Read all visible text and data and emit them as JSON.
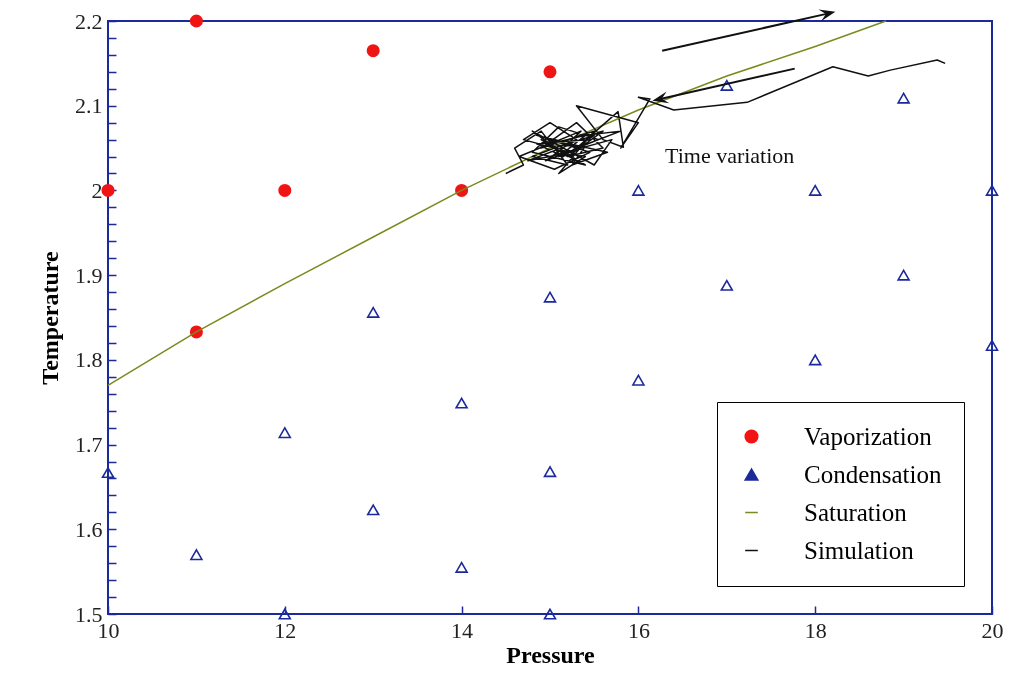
{
  "chart_data": {
    "type": "scatter",
    "xlabel": "Pressure",
    "ylabel": "Temperature",
    "xlim": [
      10,
      20
    ],
    "ylim": [
      1.5,
      2.2
    ],
    "xticks": [
      10,
      12,
      14,
      16,
      18,
      20
    ],
    "yticks": [
      1.5,
      {
        "value": 1.52,
        "label": null
      },
      {
        "value": 1.54,
        "label": null
      },
      {
        "value": 1.56,
        "label": null
      },
      {
        "value": 1.58,
        "label": null
      },
      1.6,
      {
        "value": 1.62,
        "label": null
      },
      {
        "value": 1.64,
        "label": null
      },
      {
        "value": 1.66,
        "label": null
      },
      {
        "value": 1.68,
        "label": null
      },
      1.7,
      {
        "value": 1.72,
        "label": null
      },
      {
        "value": 1.74,
        "label": null
      },
      {
        "value": 1.76,
        "label": null
      },
      {
        "value": 1.78,
        "label": null
      },
      1.8,
      {
        "value": 1.82,
        "label": null
      },
      {
        "value": 1.84,
        "label": null
      },
      {
        "value": 1.86,
        "label": null
      },
      {
        "value": 1.88,
        "label": null
      },
      1.9,
      {
        "value": 1.92,
        "label": null
      },
      {
        "value": 1.94,
        "label": null
      },
      {
        "value": 1.96,
        "label": null
      },
      {
        "value": 1.98,
        "label": null
      },
      2,
      {
        "value": 2.02,
        "label": null
      },
      {
        "value": 2.04,
        "label": null
      },
      {
        "value": 2.06,
        "label": null
      },
      {
        "value": 2.08,
        "label": null
      },
      2.1,
      {
        "value": 2.12,
        "label": null
      },
      {
        "value": 2.14,
        "label": null
      },
      {
        "value": 2.16,
        "label": null
      },
      {
        "value": 2.18,
        "label": null
      },
      2.2
    ],
    "legend": "bottom right",
    "annotations": [
      "Time variation"
    ],
    "series": [
      {
        "name": "Vaporization",
        "type": "scatter",
        "marker": "circle",
        "color": "#f01515",
        "x": [
          10,
          11,
          11,
          12,
          13,
          14,
          15
        ],
        "values": [
          2.0,
          2.2,
          1.833,
          2.0,
          2.165,
          2.0,
          2.14
        ]
      },
      {
        "name": "Condensation",
        "type": "scatter",
        "marker": "triangle",
        "color": "#1a2a9c",
        "x": [
          10,
          11,
          12,
          12,
          13,
          13,
          14,
          14,
          15,
          15,
          15,
          16,
          16,
          17,
          17,
          18,
          18,
          19,
          19,
          20,
          20
        ],
        "values": [
          1.667,
          1.57,
          1.714,
          1.5,
          1.856,
          1.623,
          1.749,
          1.555,
          1.874,
          1.668,
          1.5,
          2.0,
          1.776,
          2.124,
          1.888,
          2.0,
          1.8,
          2.109,
          1.9,
          2.0,
          1.817
        ]
      },
      {
        "name": "Saturation",
        "type": "line",
        "color": "#7a8a1e",
        "x": [
          10,
          11,
          12,
          13,
          14,
          15,
          16,
          17,
          18,
          18.8
        ],
        "values": [
          1.77,
          1.833,
          1.89,
          1.945,
          2.0,
          2.05,
          2.095,
          2.135,
          2.17,
          2.2
        ]
      },
      {
        "name": "Simulation",
        "type": "line",
        "color": "#111111",
        "x": [
          14.5,
          14.7,
          14.6,
          14.9,
          15.2,
          14.8,
          15.3,
          15.0,
          14.7,
          15.4,
          15.1,
          15.5,
          14.9,
          15.3,
          15.6,
          15.2,
          14.8,
          15.5,
          15.7,
          15.0,
          14.75,
          15.25,
          14.85,
          15.45,
          15.05,
          14.65,
          15.35,
          15.15,
          14.95,
          15.55,
          15.1,
          14.8,
          15.4,
          15.0,
          15.6,
          15.2,
          14.9,
          15.3,
          15.05,
          15.5,
          15.15,
          14.85,
          15.45,
          15.25,
          15.65,
          15.0,
          15.35,
          15.1,
          15.4,
          15.8,
          15.3,
          15.77,
          15.83,
          15.6,
          15.3,
          16.0,
          15.8,
          16.13,
          16.0,
          16.4,
          17.23,
          17.6,
          18.2,
          18.6,
          18.85,
          19.38,
          19.47
        ],
        "values": [
          2.02,
          2.03,
          2.05,
          2.07,
          2.03,
          2.04,
          2.06,
          2.08,
          2.06,
          2.04,
          2.02,
          2.07,
          2.05,
          2.08,
          2.05,
          2.04,
          2.07,
          2.03,
          2.06,
          2.04,
          2.035,
          2.055,
          2.065,
          2.045,
          2.025,
          2.04,
          2.07,
          2.05,
          2.035,
          2.06,
          2.075,
          2.045,
          2.03,
          2.055,
          2.07,
          2.04,
          2.06,
          2.035,
          2.05,
          2.065,
          2.04,
          2.055,
          2.06,
          2.03,
          2.045,
          2.06,
          2.05,
          2.04,
          2.065,
          2.07,
          2.05,
          2.093,
          2.051,
          2.06,
          2.1,
          2.08,
          2.05,
          2.108,
          2.11,
          2.095,
          2.104,
          2.12,
          2.146,
          2.135,
          2.142,
          2.154,
          2.15
        ]
      }
    ]
  }
}
